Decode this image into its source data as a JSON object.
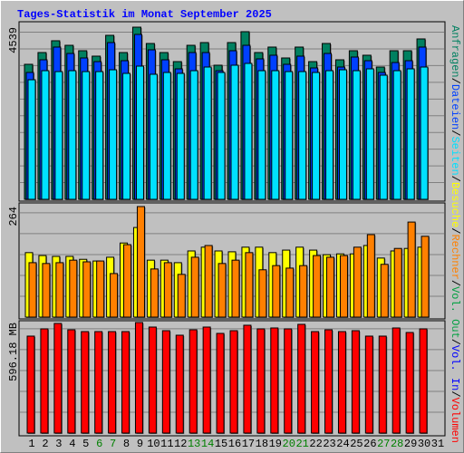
{
  "title": "Tages-Statistik im Monat September 2025",
  "legend_separator": "/",
  "chart_data": [
    {
      "type": "bar",
      "ylim": [
        0,
        4539
      ],
      "yticks": [
        4539
      ],
      "series": [
        {
          "name": "Anfragen",
          "color": "#008060",
          "values": [
            3560,
            3870,
            4181,
            4061,
            3918,
            3775,
            4324,
            3870,
            4539,
            4109,
            3870,
            3631,
            4061,
            4133,
            3536,
            4133,
            4420,
            3870,
            4014,
            3727,
            4014,
            3631,
            4109,
            3679,
            3918,
            3799,
            3488,
            3918,
            3918,
            4229,
            null
          ]
        },
        {
          "name": "Dateien",
          "color": "#0040FF",
          "values": [
            3345,
            3679,
            4014,
            3846,
            3727,
            3631,
            4133,
            3655,
            4348,
            3942,
            3679,
            3440,
            3870,
            3870,
            3392,
            3918,
            4061,
            3703,
            3799,
            3560,
            3775,
            3464,
            3846,
            3488,
            3751,
            3655,
            3345,
            3607,
            3655,
            4014,
            null
          ]
        },
        {
          "name": "Seiten",
          "color": "#00E0FF",
          "values": [
            3153,
            3392,
            3368,
            3392,
            3368,
            3368,
            3416,
            3321,
            3512,
            3297,
            3345,
            3321,
            3392,
            3488,
            3345,
            3536,
            3584,
            3392,
            3392,
            3368,
            3368,
            3345,
            3392,
            3416,
            3392,
            3440,
            3273,
            3392,
            3440,
            3488,
            null
          ]
        }
      ]
    },
    {
      "type": "bar",
      "ylim": [
        0,
        264
      ],
      "yticks": [
        264
      ],
      "series": [
        {
          "name": "Besuche",
          "color": "#FFFF00",
          "values": [
            154,
            147,
            145,
            145,
            138,
            134,
            143,
            177,
            214,
            136,
            136,
            130,
            158,
            167,
            158,
            156,
            167,
            167,
            154,
            160,
            167,
            160,
            149,
            151,
            151,
            171,
            141,
            158,
            164,
            167,
            null
          ]
        },
        {
          "name": "Rechner",
          "color": "#FF8000",
          "values": [
            130,
            128,
            130,
            136,
            132,
            134,
            104,
            173,
            264,
            115,
            130,
            102,
            143,
            171,
            128,
            136,
            154,
            113,
            123,
            117,
            123,
            147,
            143,
            147,
            167,
            197,
            126,
            164,
            227,
            193,
            null
          ]
        }
      ]
    },
    {
      "type": "bar",
      "ylim": [
        0,
        596.18
      ],
      "yticks": [
        {
          "value": 596.18,
          "label": "596.18 MB"
        }
      ],
      "categories": [
        "1",
        "2",
        "3",
        "4",
        "5",
        "6",
        "7",
        "8",
        "9",
        "10",
        "11",
        "12",
        "13",
        "14",
        "15",
        "16",
        "17",
        "18",
        "19",
        "20",
        "21",
        "22",
        "23",
        "24",
        "25",
        "26",
        "27",
        "28",
        "29",
        "30",
        "31"
      ],
      "category_colors": [
        "#000000",
        "#000000",
        "#000000",
        "#000000",
        "#000000",
        "#008000",
        "#008000",
        "#000000",
        "#000000",
        "#000000",
        "#000000",
        "#000000",
        "#008000",
        "#008000",
        "#000000",
        "#000000",
        "#000000",
        "#000000",
        "#000000",
        "#008000",
        "#008000",
        "#000000",
        "#000000",
        "#000000",
        "#000000",
        "#000000",
        "#008000",
        "#008000",
        "#000000",
        "#000000",
        "#000000"
      ],
      "legend_extra": [
        {
          "name": "Vol. Out",
          "color": "#00A040"
        },
        {
          "name": "Vol. In",
          "color": "#0000FF"
        }
      ],
      "series": [
        {
          "name": "Volumen",
          "color": "#FF0000",
          "values": [
            522.9,
            562.0,
            591.3,
            557.1,
            547.3,
            547.3,
            547.3,
            547.3,
            596.18,
            571.8,
            552.2,
            527.8,
            557.1,
            571.8,
            537.6,
            552.2,
            581.6,
            562.0,
            566.9,
            562.0,
            586.4,
            547.3,
            557.1,
            547.3,
            552.2,
            522.9,
            522.9,
            566.9,
            542.5,
            562.0,
            null
          ]
        }
      ]
    }
  ]
}
